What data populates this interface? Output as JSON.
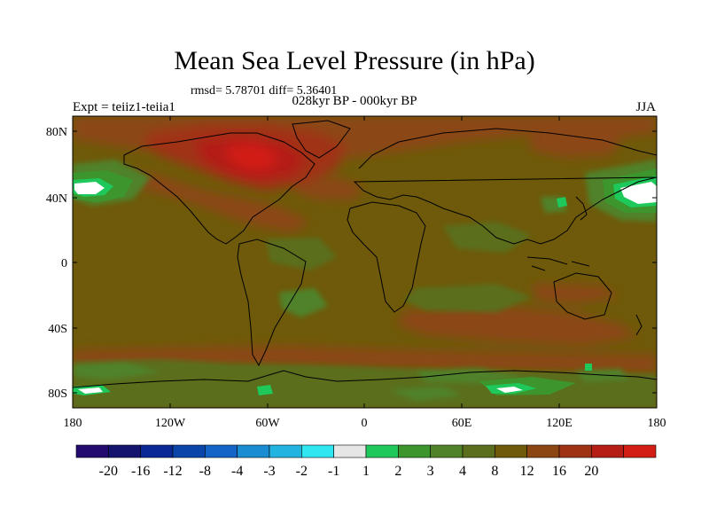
{
  "title": "Mean Sea Level Pressure (in hPa)",
  "stats": "rmsd= 5.78701 diff= 5.36401",
  "period": "028kyr BP - 000kyr BP",
  "experiment": "Expt = teiiz1-teiia1",
  "season": "JJA",
  "lat_ticks": [
    "80N",
    "40N",
    "0",
    "40S",
    "80S"
  ],
  "lon_ticks": [
    "180",
    "120W",
    "60W",
    "0",
    "60E",
    "120E",
    "180"
  ],
  "colorbar": {
    "colors": [
      "#230a6e",
      "#14146e",
      "#0a2896",
      "#0a46aa",
      "#1464c8",
      "#1a8cd2",
      "#22b4e0",
      "#30e6f0",
      "#e6e6e6",
      "#1ec85a",
      "#3c962d",
      "#50822a",
      "#5a6e1e",
      "#6e5a0a",
      "#8c4614",
      "#a03214",
      "#b41e14",
      "#d21e14"
    ],
    "labels": [
      "-20",
      "-16",
      "-12",
      "-8",
      "-4",
      "-3",
      "-2",
      "-1",
      "1",
      "2",
      "3",
      "4",
      "8",
      "12",
      "16",
      "20"
    ]
  },
  "field_colors": {
    "background": "#6e5a0a",
    "positive_8_12": "#8c4614",
    "positive_12_16": "#a03214",
    "positive_16_20": "#b41e14",
    "positive_20_plus": "#d21e14",
    "range_4_8": "#5a6e1e",
    "range_3_4": "#50822a",
    "range_2_3": "#3c962d",
    "range_1_2": "#1ec85a",
    "near_zero": "#ffffff"
  }
}
